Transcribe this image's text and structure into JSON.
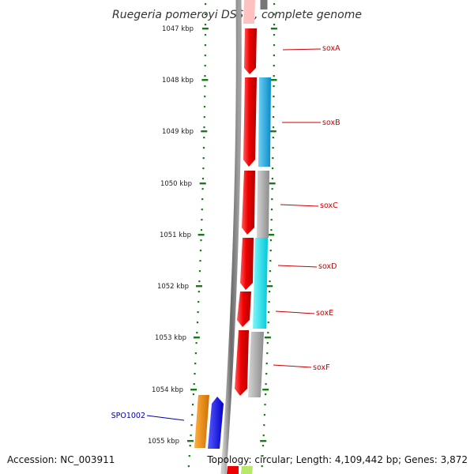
{
  "title": "Ruegeria pomeroyi DSS-3, complete genome",
  "footer": {
    "accession": "Accession: NC_003911",
    "topology": "Topology: circular; Length: 4,109,442 bp; Genes: 3,872"
  },
  "ticks": [
    "1047 kbp",
    "1048 kbp",
    "1049 kbp",
    "1050 kbp",
    "1051 kbp",
    "1052 kbp",
    "1053 kbp",
    "1054 kbp",
    "1055 kbp"
  ],
  "gene_labels": [
    {
      "name": "soxA",
      "color": "#cc0000"
    },
    {
      "name": "soxB",
      "color": "#cc0000"
    },
    {
      "name": "soxC",
      "color": "#cc0000"
    },
    {
      "name": "soxD",
      "color": "#cc0000"
    },
    {
      "name": "soxE",
      "color": "#cc0000"
    },
    {
      "name": "soxF",
      "color": "#cc0000"
    },
    {
      "name": "SPO1002",
      "color": "#0000aa"
    }
  ],
  "colors": {
    "backbone": "#7a7a7a",
    "tick": "#1a7a1a",
    "forward_gene": "#ee0000",
    "soxB_feature": "#1aa8e0",
    "soxC_feature": "#a8a8a8",
    "soxD_feature": "#11e6f0",
    "soxF_feature": "#b4b4b4",
    "SPO1002_feature": "#1a1aee",
    "orange_feature": "#f08c00"
  }
}
